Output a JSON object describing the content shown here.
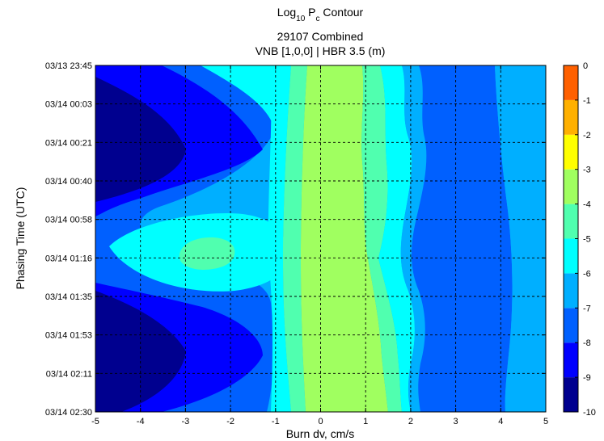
{
  "chart_data": {
    "type": "contour",
    "title": {
      "line1_prefix": "Log",
      "line1_sub1": "10",
      "line1_mid": " P",
      "line1_sub2": "c",
      "line1_suffix": " Contour",
      "line2": "29107 Combined",
      "line3": "VNB [1,0,0] | HBR 3.5 (m)"
    },
    "xlabel": "Burn dv, cm/s",
    "ylabel": "Phasing Time (UTC)",
    "xlim": [
      -5,
      5
    ],
    "x_ticks": [
      -5,
      -4,
      -3,
      -2,
      -1,
      0,
      1,
      2,
      3,
      4,
      5
    ],
    "y_ticks": [
      "03/13 23:45",
      "03/14 00:03",
      "03/14 00:21",
      "03/14 00:40",
      "03/14 00:58",
      "03/14 01:16",
      "03/14 01:35",
      "03/14 01:53",
      "03/14 02:11",
      "03/14 02:30"
    ],
    "grid": true,
    "colormap": "jet",
    "colorbar": {
      "ticks": [
        "0",
        "-1",
        "-2",
        "-3",
        "-4",
        "-5",
        "-6",
        "-7",
        "-8",
        "-9",
        "-10"
      ],
      "range": [
        -10,
        0
      ],
      "colors": [
        "#00008F",
        "#0000FF",
        "#0060FF",
        "#00AFFF",
        "#00FFFF",
        "#50FFAF",
        "#A0FF60",
        "#FFFF00",
        "#FFB000",
        "#FF6000"
      ]
    },
    "vertical_bands": [
      {
        "level": -6,
        "x_from": -1.2,
        "x_to": -0.8
      },
      {
        "level": -5,
        "x_from": -0.8,
        "x_to": -0.3
      },
      {
        "level": -4,
        "x_from": -0.3,
        "x_to": 0.9
      },
      {
        "level": -5,
        "x_from": 0.9,
        "x_to": 1.4
      },
      {
        "level": -6,
        "x_from": 1.4,
        "x_to": 1.7
      },
      {
        "level": -7,
        "x_from": 1.7,
        "x_to": 2.0
      },
      {
        "level": -8,
        "x_from": 2.0,
        "x_to": 4.3
      },
      {
        "level": -7,
        "x_from": 4.3,
        "x_to": 5.0
      }
    ]
  }
}
